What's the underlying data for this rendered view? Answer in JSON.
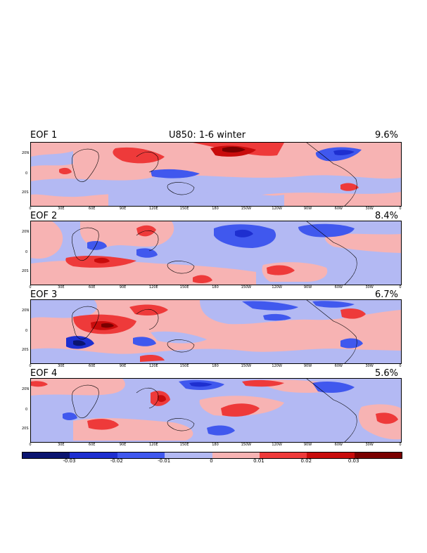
{
  "figure": {
    "title": "U850: 1-6 winter"
  },
  "panels": [
    {
      "label": "EOF 1",
      "variance": "9.6%"
    },
    {
      "label": "EOF 2",
      "variance": "8.4%"
    },
    {
      "label": "EOF 3",
      "variance": "6.7%"
    },
    {
      "label": "EOF 4",
      "variance": "5.6%"
    }
  ],
  "lat_ticks": [
    "20N",
    "0",
    "20S"
  ],
  "lon_ticks": [
    "0",
    "30E",
    "60E",
    "90E",
    "120E",
    "150E",
    "180",
    "150W",
    "120W",
    "90W",
    "60W",
    "30W",
    "0"
  ],
  "colorbar": {
    "labels": [
      "-0.03",
      "-0.02",
      "-0.01",
      "0",
      "0.01",
      "0.02",
      "0.03"
    ],
    "colors": [
      "#0a1470",
      "#1e2fd0",
      "#4058ee",
      "#b3b9f3",
      "#f7b3b3",
      "#ee3a3a",
      "#c80c0c",
      "#7a0000"
    ]
  },
  "palette": {
    "neg_weak": "#b3b9f3",
    "neg_mid": "#4058ee",
    "neg_strong": "#1e2fd0",
    "neg_max": "#0a1470",
    "pos_weak": "#f7b3b3",
    "pos_mid": "#ee3a3a",
    "pos_strong": "#c80c0c",
    "pos_max": "#7a0000"
  }
}
